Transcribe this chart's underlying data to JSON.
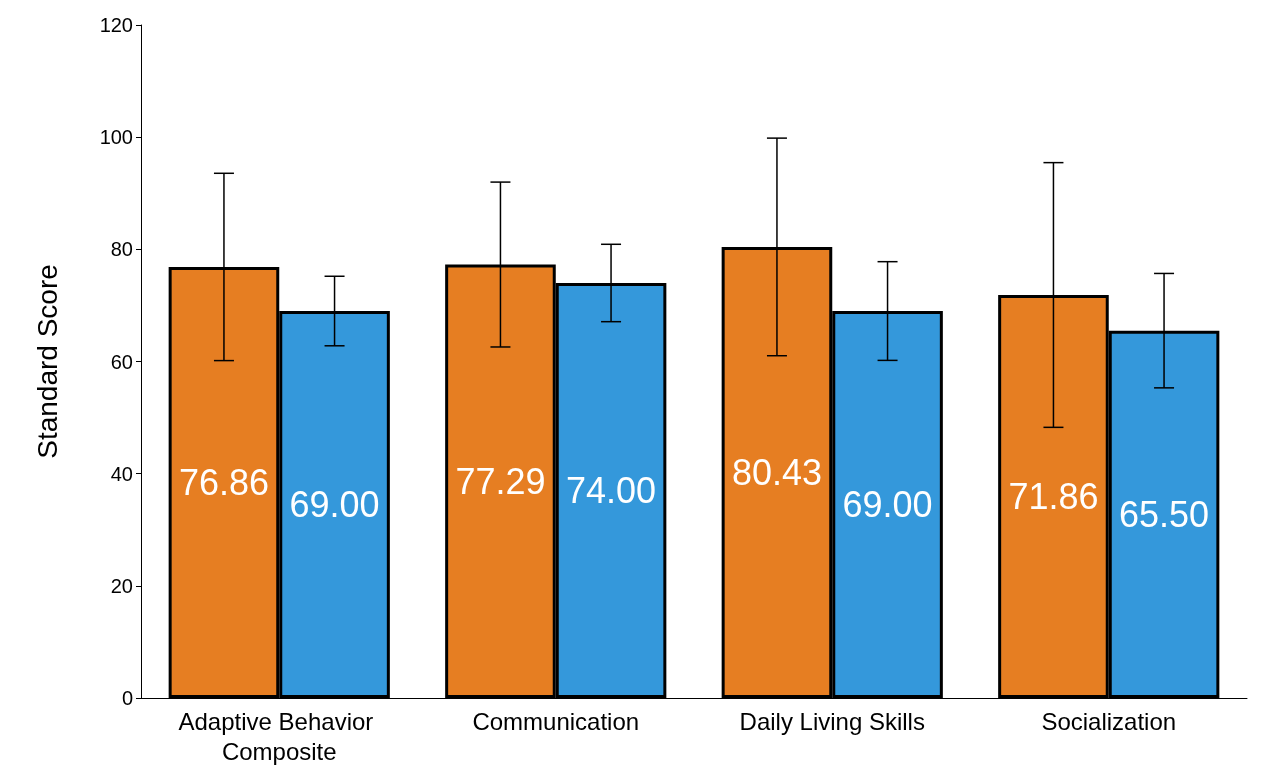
{
  "chart_data": {
    "type": "bar",
    "ylabel": "Standard Score",
    "categories": [
      "Adaptive Behavior Composite",
      "Communication",
      "Daily Living Skills",
      "Socialization"
    ],
    "series": [
      {
        "color": "#e67e22",
        "values": [
          76.86,
          77.29,
          80.43,
          71.86
        ],
        "value_labels": [
          "76.86",
          "77.29",
          "80.43",
          "71.86"
        ],
        "errors": [
          16.7,
          14.7,
          19.4,
          23.6
        ]
      },
      {
        "color": "#3498db",
        "values": [
          69.0,
          74.0,
          69.0,
          65.5
        ],
        "value_labels": [
          "69.00",
          "74.00",
          "69.00",
          "65.50"
        ],
        "errors": [
          6.2,
          6.9,
          8.8,
          10.2
        ]
      }
    ],
    "ylim": [
      0,
      120
    ],
    "yticks": [
      0,
      20,
      40,
      60,
      80,
      100,
      120
    ],
    "grid": false
  }
}
